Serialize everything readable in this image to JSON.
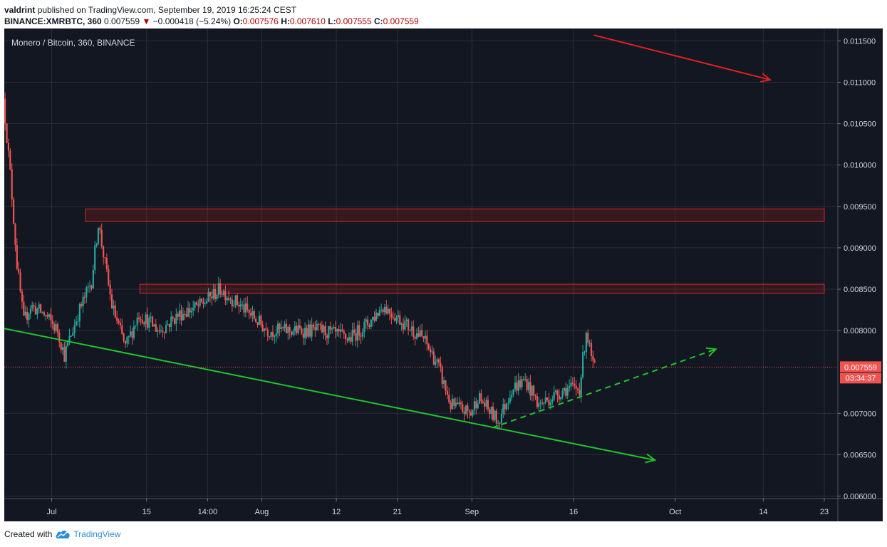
{
  "header": {
    "author": "valdrint",
    "published_text": "published on TradingView.com, September 19, 2019 16:25:24 CEST",
    "symbol": "BINANCE:XMRBTC, 360",
    "last": "0.007559",
    "arrow": "▼",
    "change": "−0.000418 (−5.24%)",
    "o_label": "O:",
    "o_value": "0.007576",
    "h_label": "H:",
    "h_value": "0.007610",
    "l_label": "L:",
    "l_value": "0.007555",
    "c_label": "C:",
    "c_value": "0.007559"
  },
  "chart_data": {
    "type": "candlestick",
    "title": "Monero / Bitcoin, 360, BINANCE",
    "y_axis": {
      "range": [
        0.00597,
        0.01165
      ],
      "ticks": [
        "0.011500",
        "0.011000",
        "0.010500",
        "0.010000",
        "0.009500",
        "0.009000",
        "0.008500",
        "0.008000",
        "0.007000",
        "0.006500",
        "0.006000"
      ]
    },
    "x_axis": {
      "labels": [
        "Jul",
        "15",
        "14:00",
        "Aug",
        "12",
        "21",
        "Sep",
        "16",
        "Oct",
        "14",
        "23"
      ],
      "date_range": [
        "2019-06-24",
        "2019-10-25"
      ]
    },
    "price_path": [
      [
        "2019-06-24",
        0.0108
      ],
      [
        "2019-06-25",
        0.0099
      ],
      [
        "2019-06-26",
        0.0088
      ],
      [
        "2019-06-27",
        0.0081
      ],
      [
        "2019-06-28",
        0.0083
      ],
      [
        "2019-06-30",
        0.0082
      ],
      [
        "2019-07-02",
        0.008
      ],
      [
        "2019-07-03",
        0.0077
      ],
      [
        "2019-07-05",
        0.0082
      ],
      [
        "2019-07-07",
        0.0086
      ],
      [
        "2019-07-08",
        0.0093
      ],
      [
        "2019-07-10",
        0.0083
      ],
      [
        "2019-07-12",
        0.0078
      ],
      [
        "2019-07-14",
        0.0082
      ],
      [
        "2019-07-17",
        0.008
      ],
      [
        "2019-07-20",
        0.0082
      ],
      [
        "2019-07-23",
        0.0083
      ],
      [
        "2019-07-26",
        0.0085
      ],
      [
        "2019-07-29",
        0.0083
      ],
      [
        "2019-08-02",
        0.008
      ],
      [
        "2019-08-06",
        0.008
      ],
      [
        "2019-08-10",
        0.008
      ],
      [
        "2019-08-14",
        0.0079
      ],
      [
        "2019-08-17",
        0.0081
      ],
      [
        "2019-08-19",
        0.0083
      ],
      [
        "2019-08-22",
        0.0081
      ],
      [
        "2019-08-25",
        0.0079
      ],
      [
        "2019-08-27",
        0.0076
      ],
      [
        "2019-08-29",
        0.0071
      ],
      [
        "2019-09-01",
        0.007
      ],
      [
        "2019-09-02",
        0.0072
      ],
      [
        "2019-09-05",
        0.0069
      ],
      [
        "2019-09-07",
        0.0073
      ],
      [
        "2019-09-09",
        0.0074
      ],
      [
        "2019-09-11",
        0.0071
      ],
      [
        "2019-09-13",
        0.0072
      ],
      [
        "2019-09-15",
        0.0073
      ],
      [
        "2019-09-17",
        0.0073
      ],
      [
        "2019-09-18",
        0.008
      ],
      [
        "2019-09-19",
        0.007559
      ]
    ],
    "last_price": "0.007559",
    "countdown": "03:34:37",
    "resistance_zones": [
      {
        "from_date": "2019-07-06",
        "to_date": "2019-10-23",
        "low": 0.00932,
        "high": 0.00947
      },
      {
        "from_date": "2019-07-14",
        "to_date": "2019-10-23",
        "low": 0.00845,
        "high": 0.00856
      }
    ],
    "trend_lines": [
      {
        "name": "descending-support",
        "color": "#22c32e",
        "style": "solid",
        "arrow": true,
        "from": [
          "2019-06-24",
          0.008025
        ],
        "to": [
          "2019-09-28",
          0.006435
        ]
      },
      {
        "name": "ascending-support",
        "color": "#22c32e",
        "style": "dashed",
        "arrow": true,
        "from": [
          "2019-09-04",
          0.006825
        ],
        "to": [
          "2019-10-07",
          0.007775
        ]
      },
      {
        "name": "long-term-downtrend",
        "color": "#e02020",
        "style": "solid",
        "arrow": true,
        "from": [
          "2019-09-19",
          0.01157
        ],
        "to": [
          "2019-10-15",
          0.01103
        ]
      }
    ],
    "colors": {
      "background": "#131722",
      "grid": "#2a2e39",
      "up": "#26a69a",
      "down": "#ef5350",
      "zone": "#8b1a1a"
    }
  },
  "footer": {
    "created_with": "Created with",
    "brand": "TradingView"
  }
}
